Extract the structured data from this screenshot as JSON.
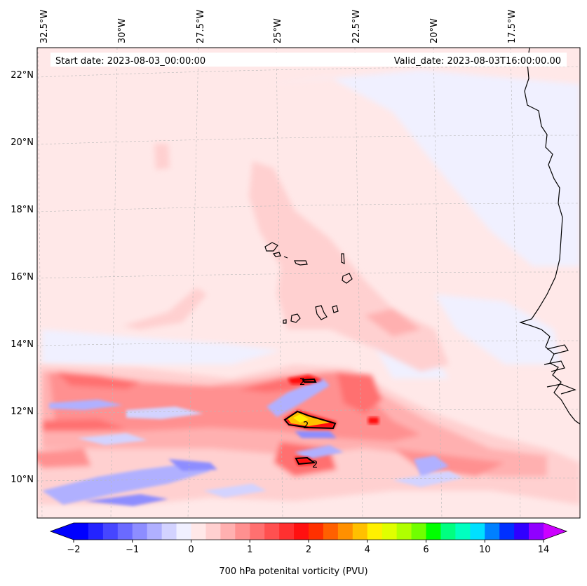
{
  "map": {
    "start_date": "Start date: 2023-08-03_00:00:00",
    "valid_date": "Valid_date: 2023-08-03T16:00:00.00",
    "lon_labels": [
      "32.5°W",
      "30°W",
      "27.5°W",
      "25°W",
      "22.5°W",
      "20°W",
      "17.5°W"
    ],
    "lat_labels": [
      "22°N",
      "20°N",
      "18°N",
      "16°N",
      "14°N",
      "12°N",
      "10°N"
    ],
    "contour_label": "2"
  },
  "colorbar": {
    "label": "700 hPa potenital vorticity (PVU)",
    "tick_labels": [
      "−2",
      "−1",
      "0",
      "1",
      "2",
      "4",
      "6",
      "10",
      "14"
    ],
    "colors": [
      "#0000ff",
      "#2323ff",
      "#4646ff",
      "#6a6aff",
      "#8d8dff",
      "#b0b0ff",
      "#d3d3ff",
      "#f0f0ff",
      "#ffe8e8",
      "#ffd0d0",
      "#ffb0b0",
      "#ff9090",
      "#ff7070",
      "#ff5050",
      "#ff3030",
      "#ff1010",
      "#ff3000",
      "#ff6000",
      "#ff9000",
      "#ffc000",
      "#fff000",
      "#e0ff00",
      "#b0ff00",
      "#70ff00",
      "#00ff00",
      "#00ff80",
      "#00ffc0",
      "#00e0ff",
      "#0080ff",
      "#0030ff",
      "#3000ff",
      "#9000ff"
    ],
    "over_color": "#cc00ff",
    "under_color": "#0000ff"
  }
}
